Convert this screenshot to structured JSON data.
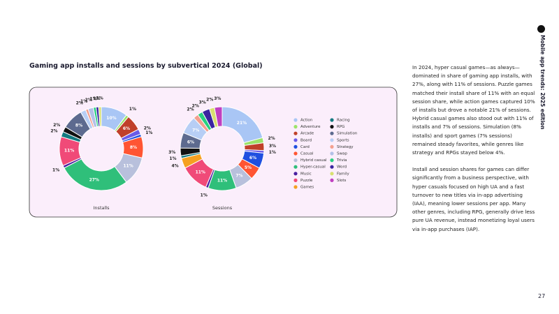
{
  "header": {
    "title": "Gaming app installs and sessions by subvertical 2024 (Global)",
    "side_title": "Mobile app trends: 2025 edition"
  },
  "legend": {
    "categories": [
      "Action",
      "Adventure",
      "Arcade",
      "Board",
      "Card",
      "Casual",
      "Hybrid casual",
      "Hyper-casual",
      "Music",
      "Puzzle",
      "Games",
      "Racing",
      "RPG",
      "Simulation",
      "Sports",
      "Strategy",
      "Swap",
      "Trivia",
      "Word",
      "Family",
      "Slots"
    ],
    "colors": [
      "#a9c6f5",
      "#9be36a",
      "#c0402a",
      "#6b5be8",
      "#1f4fe0",
      "#ff5533",
      "#b8c0dc",
      "#2fbf7a",
      "#4a1fa0",
      "#f04a78",
      "#f5a020",
      "#137a80",
      "#111111",
      "#5d6a8f",
      "#b7cef5",
      "#f3a090",
      "#b3c0e8",
      "#28d080",
      "#3a25a0",
      "#d8e070",
      "#c040c0"
    ]
  },
  "chart_data": [
    {
      "type": "pie",
      "label": "Installs",
      "values": [
        10,
        1,
        6,
        2,
        1,
        8,
        11,
        27,
        1,
        11,
        null,
        2,
        2,
        8,
        2,
        1,
        2,
        1,
        1,
        1,
        null
      ],
      "value_labels": [
        "10%",
        "1%",
        "6%",
        "2%",
        "1%",
        "8%",
        "11%",
        "27%",
        "1%",
        "11%",
        null,
        "2%",
        "2%",
        "8%",
        "2%",
        "1%",
        "2%",
        "1%",
        "1%",
        "1%",
        null
      ]
    },
    {
      "type": "pie",
      "label": "Sessions",
      "values": [
        21,
        2,
        3,
        1,
        6,
        5,
        7,
        11,
        1,
        11,
        4,
        1,
        3,
        6,
        7,
        2,
        null,
        2,
        3,
        2,
        3
      ],
      "value_labels": [
        "21%",
        "2%",
        "3%",
        "1%",
        "6%",
        "5%",
        "7%",
        "11%",
        "1%",
        "11%",
        "4%",
        "1%",
        "3%",
        "6%",
        "7%",
        "2%",
        null,
        "2%",
        "3%",
        "2%",
        "3%"
      ]
    }
  ],
  "body": {
    "paragraphs": [
      "In 2024, hyper casual games—as always—dominated in share of gaming app installs, with 27%, along with 11% of sessions. Puzzle games matched their install share of 11% with an equal session share, while action games captured 10% of installs but drove a notable 21% of sessions. Hybrid casual games also stood out with 11% of installs and 7% of sessions. Simulation (8% installs) and sport games (7% sessions) remained steady favorites, while genres like strategy and RPGs stayed below 4%.",
      "Install and session shares for games can differ significantly from a business perspective, with hyper casuals focused on high UA and a fast turnover to new titles via in-app advertising (IAA), meaning lower sessions per app. Many other genres, including RPG, generally drive less pure UA revenue, instead monetizing loyal users via in-app purchases (IAP)."
    ]
  },
  "page_number": "27"
}
